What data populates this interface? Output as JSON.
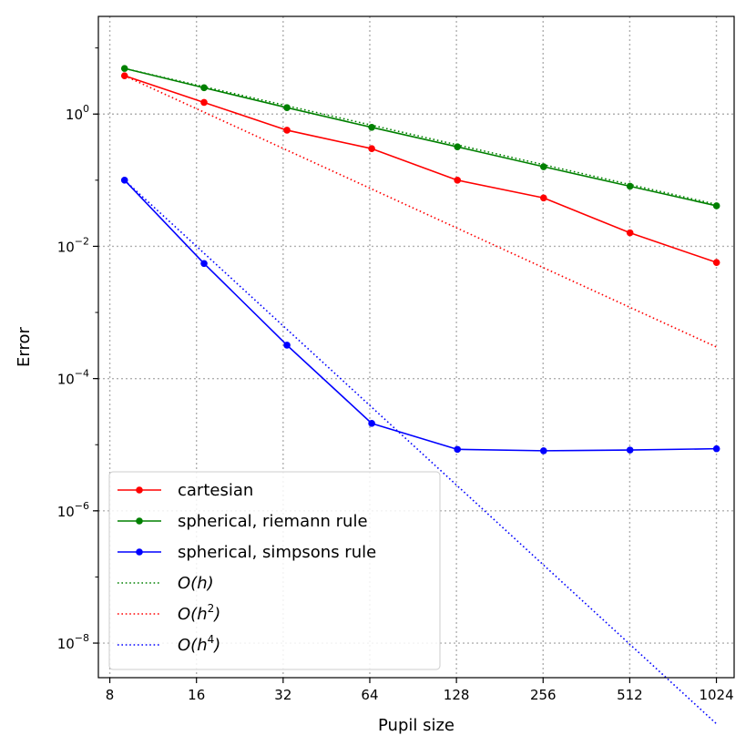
{
  "chart_data": {
    "type": "line",
    "title": "",
    "xlabel": "Pupil size",
    "ylabel": "Error",
    "xscale": "log2",
    "yscale": "log10",
    "xlim": [
      7.3,
      1180
    ],
    "ylim": [
      3e-09,
      30
    ],
    "x_ticks": [
      8,
      16,
      32,
      64,
      128,
      256,
      512,
      1024
    ],
    "x_tick_labels": [
      "8",
      "16",
      "32",
      "64",
      "128",
      "256",
      "512",
      "1024"
    ],
    "y_ticks": [
      {
        "value": 1,
        "base": "10",
        "exp": "0"
      },
      {
        "value": 0.01,
        "base": "10",
        "exp": "−2"
      },
      {
        "value": 0.0001,
        "base": "10",
        "exp": "−4"
      },
      {
        "value": 1e-06,
        "base": "10",
        "exp": "−6"
      },
      {
        "value": 1e-08,
        "base": "10",
        "exp": "−8"
      }
    ],
    "grid": true,
    "legend_position": "bottom-left",
    "series": [
      {
        "name": "cartesian",
        "color": "#ff0000",
        "style": "solid",
        "marker": "circle",
        "x": [
          9,
          17,
          33,
          65,
          129,
          257,
          513,
          1025
        ],
        "y": [
          3.8,
          1.5,
          0.57,
          0.3,
          0.1,
          0.054,
          0.016,
          0.0057
        ]
      },
      {
        "name": "spherical, riemann rule",
        "color": "#008000",
        "style": "solid",
        "marker": "circle",
        "x": [
          9,
          17,
          33,
          65,
          129,
          257,
          513,
          1025
        ],
        "y": [
          4.9,
          2.5,
          1.25,
          0.63,
          0.32,
          0.16,
          0.081,
          0.041
        ]
      },
      {
        "name": "spherical, simpsons rule",
        "color": "#0000ff",
        "style": "solid",
        "marker": "circle",
        "x": [
          9,
          17,
          33,
          65,
          129,
          257,
          513,
          1025
        ],
        "y": [
          0.1,
          0.0055,
          0.00032,
          2.1e-05,
          8.5e-06,
          8.1e-06,
          8.3e-06,
          8.7e-06
        ]
      },
      {
        "name": "O(h)",
        "label_parts": [
          "O(h)",
          ""
        ],
        "color": "#008000",
        "style": "dotted",
        "marker": "none",
        "x": [
          9,
          1025
        ],
        "y": [
          4.9,
          0.043
        ]
      },
      {
        "name": "O(h2)",
        "label_parts": [
          "O(h",
          "2",
          ")"
        ],
        "color": "#ff0000",
        "style": "dotted",
        "marker": "none",
        "x": [
          9,
          1025
        ],
        "y": [
          3.8,
          0.0003
        ]
      },
      {
        "name": "O(h4)",
        "label_parts": [
          "O(h",
          "4",
          ")"
        ],
        "color": "#0000ff",
        "style": "dotted",
        "marker": "none",
        "x": [
          9,
          1025
        ],
        "y": [
          0.1,
          6e-10
        ]
      }
    ]
  }
}
